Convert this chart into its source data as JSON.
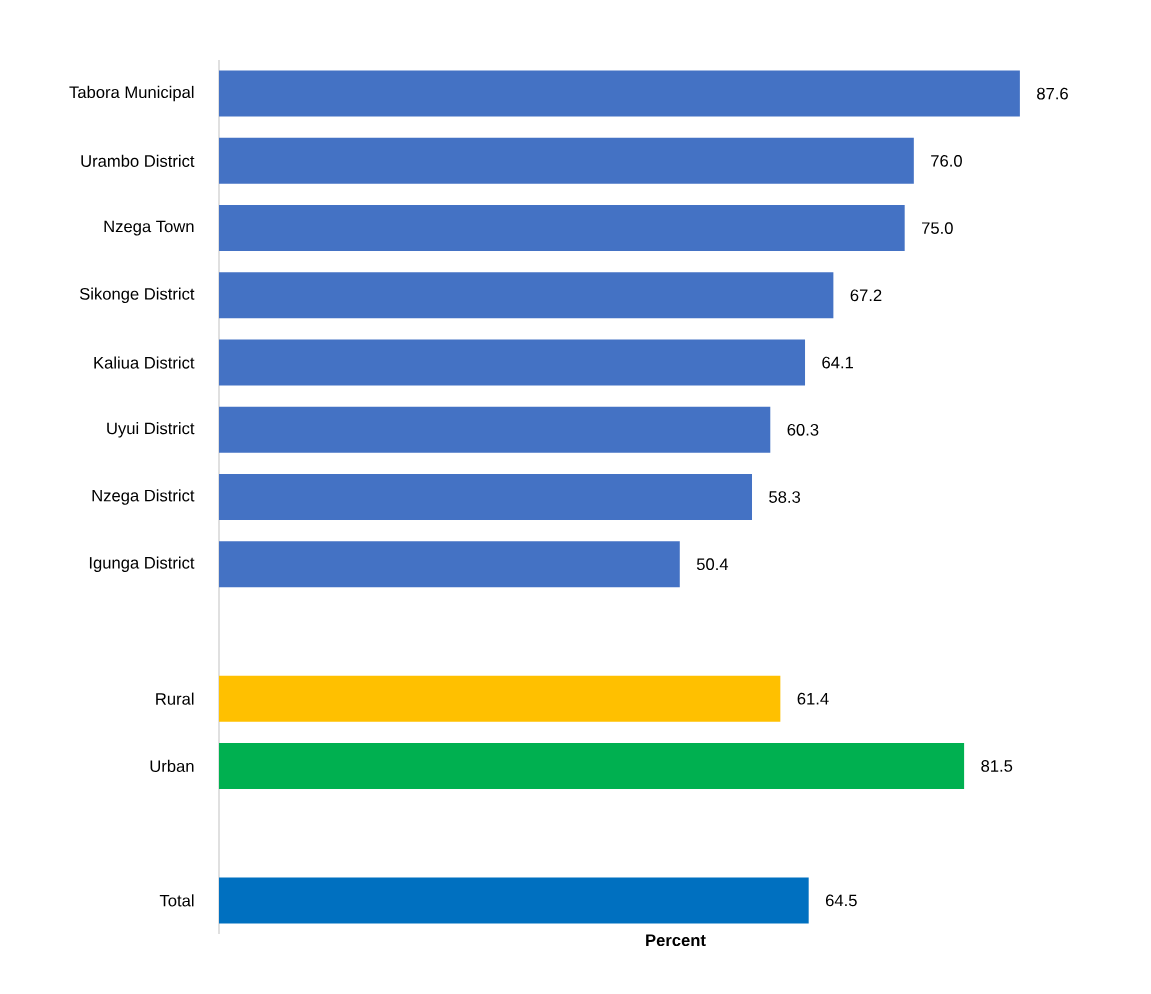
{
  "chart_data": {
    "type": "bar",
    "orientation": "horizontal",
    "xlabel": "Percent",
    "categories": [
      "Tabora Municipal",
      "Urambo District",
      "Nzega Town",
      "Sikonge District",
      "Kaliua District",
      "Uyui District",
      "Nzega District",
      "Igunga District",
      null,
      "Rural",
      "Urban",
      null,
      "Total"
    ],
    "values": [
      87.6,
      76.0,
      75.0,
      67.2,
      64.1,
      60.3,
      58.3,
      50.4,
      null,
      61.4,
      81.5,
      null,
      64.5
    ],
    "colors": [
      "#4472c4",
      "#4472c4",
      "#4472c4",
      "#4472c4",
      "#4472c4",
      "#4472c4",
      "#4472c4",
      "#4472c4",
      "#4472c4",
      "#ffc000",
      "#00b050",
      "#0070c0",
      "#0070c0"
    ],
    "value_labels": [
      "87.6",
      "76.0",
      "75.0",
      "67.2",
      "64.1",
      "60.3",
      "58.3",
      "50.4",
      null,
      "61.4",
      "81.5",
      null,
      "64.5"
    ]
  }
}
